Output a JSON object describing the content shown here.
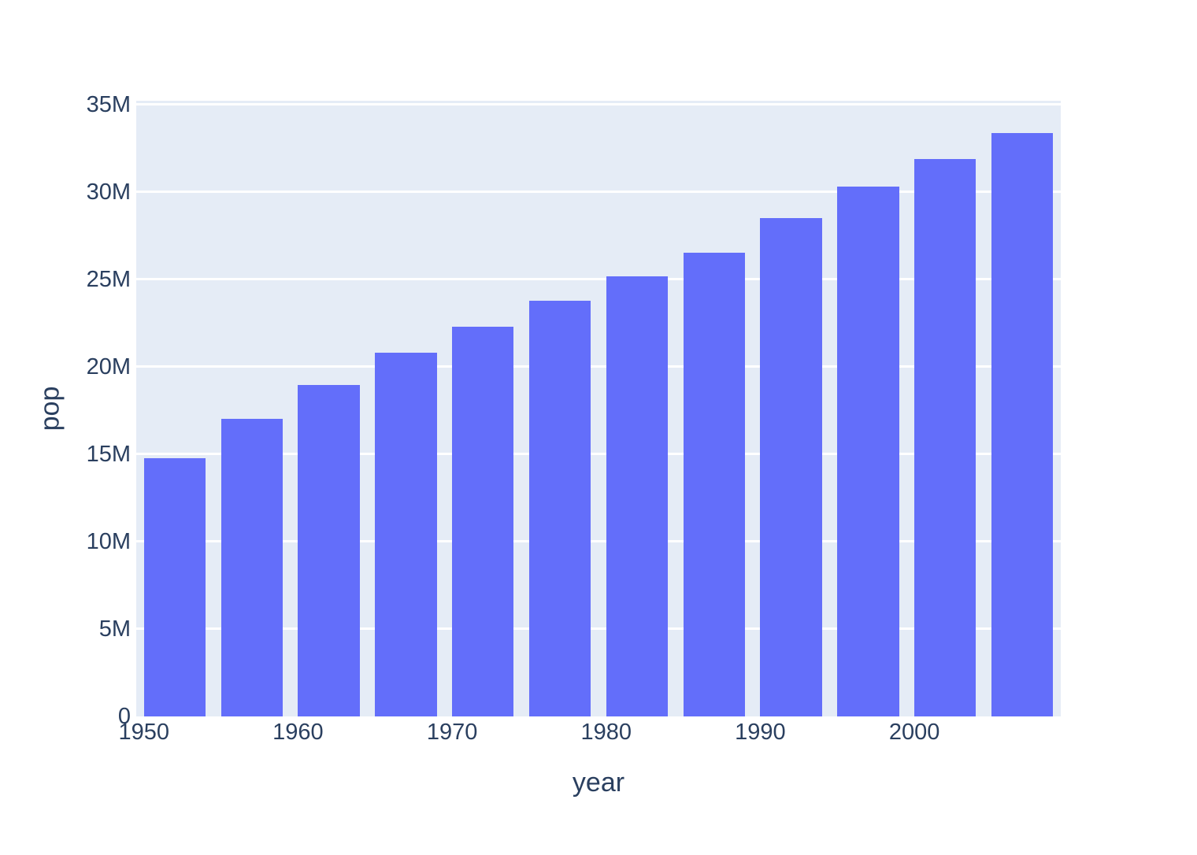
{
  "chart_data": {
    "type": "bar",
    "title": "",
    "xlabel": "year",
    "ylabel": "pop",
    "x": [
      1952,
      1957,
      1962,
      1967,
      1972,
      1977,
      1982,
      1987,
      1992,
      1997,
      2002,
      2007
    ],
    "series": [
      {
        "name": "pop",
        "values": [
          14785584,
          17010154,
          18985849,
          20819767,
          22284500,
          23796400,
          25201900,
          26549700,
          28523502,
          30305843,
          31902268,
          33390141
        ]
      }
    ],
    "x_range": [
      1949.5,
      2009.5
    ],
    "y_range": [
      0,
      35225000
    ],
    "bar_width_x": 4,
    "x_ticks": {
      "values": [
        1950,
        1960,
        1970,
        1980,
        1990,
        2000
      ],
      "labels": [
        "1950",
        "1960",
        "1970",
        "1980",
        "1990",
        "2000"
      ]
    },
    "y_ticks": {
      "values": [
        0,
        5000000,
        10000000,
        15000000,
        20000000,
        25000000,
        30000000,
        35000000
      ],
      "labels": [
        "0",
        "5M",
        "10M",
        "15M",
        "20M",
        "25M",
        "30M",
        "35M"
      ]
    },
    "grid": true,
    "legend_position": "none",
    "colors": {
      "bar": "#636efa",
      "plot_background": "#e5ecf6",
      "gridline": "#ffffff",
      "text": "#2a3f5f",
      "figure_background": "#ffffff"
    }
  }
}
